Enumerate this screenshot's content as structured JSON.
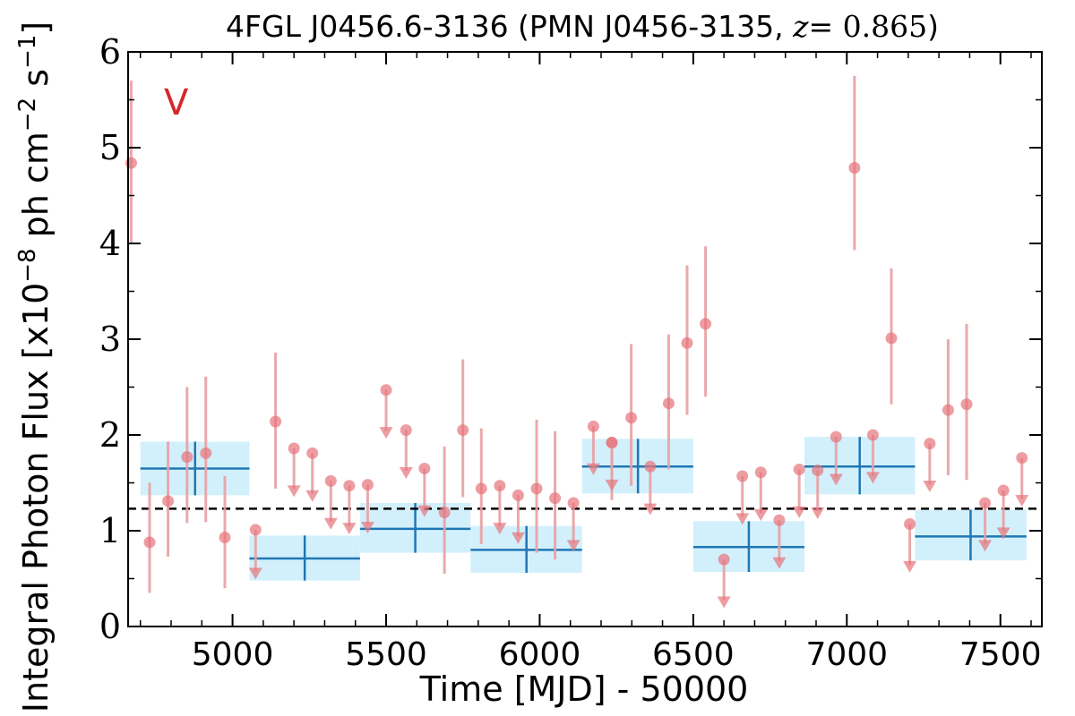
{
  "chart_data": {
    "type": "scatter",
    "title": {
      "prefix": "4FGL J0456.6-3136 (PMN J0456-3135, ",
      "z_label": "z",
      "z_value": "= 0.865",
      "suffix": ")"
    },
    "xlabel": "Time [MJD] - 50000",
    "ylabel": "Integral Photon Flux [x10",
    "ylabel_exp1": "−8",
    "ylabel_mid": " ph cm",
    "ylabel_exp2": "−2",
    "ylabel_mid2": " s",
    "ylabel_exp3": "−1",
    "ylabel_end": "]",
    "annotation": "V",
    "xlim": [
      4660,
      7635
    ],
    "ylim": [
      0,
      6
    ],
    "x_ticks": [
      5000,
      5500,
      6000,
      6500,
      7000,
      7500
    ],
    "x_tick_labels": [
      "5000",
      "5500",
      "6000",
      "6500",
      "7000",
      "7500"
    ],
    "y_ticks": [
      0,
      1,
      2,
      3,
      4,
      5,
      6
    ],
    "y_tick_labels": [
      "0",
      "1",
      "2",
      "3",
      "4",
      "5",
      "6"
    ],
    "mean_flux": 1.23,
    "colors": {
      "points": "#e5737a",
      "errorbars": "#e8a0a3",
      "bins_fill": "#cdeefc",
      "bins_line": "#1f77b4",
      "mean_line": "#000000",
      "annotation": "#d62728"
    },
    "series": [
      {
        "kind": "detections",
        "points": [
          {
            "x": 4670,
            "y": 4.84,
            "lo": 4.0,
            "hi": 5.7
          },
          {
            "x": 4730,
            "y": 0.88,
            "lo": 0.35,
            "hi": 1.5
          },
          {
            "x": 4790,
            "y": 1.31,
            "lo": 0.73,
            "hi": 1.93
          },
          {
            "x": 4852,
            "y": 1.77,
            "lo": 1.08,
            "hi": 2.5
          },
          {
            "x": 4913,
            "y": 1.81,
            "lo": 1.09,
            "hi": 2.61
          },
          {
            "x": 4975,
            "y": 0.93,
            "lo": 0.4,
            "hi": 1.57
          },
          {
            "x": 5140,
            "y": 2.14,
            "lo": 1.44,
            "hi": 2.86
          },
          {
            "x": 5690,
            "y": 1.19,
            "lo": 0.55,
            "hi": 1.88
          },
          {
            "x": 5750,
            "y": 2.05,
            "lo": 1.35,
            "hi": 2.79
          },
          {
            "x": 5810,
            "y": 1.44,
            "lo": 0.86,
            "hi": 2.07
          },
          {
            "x": 5990,
            "y": 1.44,
            "lo": 0.77,
            "hi": 2.16
          },
          {
            "x": 6050,
            "y": 1.34,
            "lo": 0.7,
            "hi": 2.04
          },
          {
            "x": 6235,
            "y": 1.92,
            "lo": 1.32,
            "hi": 1.92
          },
          {
            "x": 6298,
            "y": 2.18,
            "lo": 1.47,
            "hi": 2.95
          },
          {
            "x": 6420,
            "y": 2.33,
            "lo": 1.64,
            "hi": 3.05
          },
          {
            "x": 6480,
            "y": 2.96,
            "lo": 2.21,
            "hi": 3.77
          },
          {
            "x": 6540,
            "y": 3.16,
            "lo": 2.4,
            "hi": 3.97
          },
          {
            "x": 7025,
            "y": 4.79,
            "lo": 3.93,
            "hi": 5.75
          },
          {
            "x": 7145,
            "y": 3.01,
            "lo": 2.32,
            "hi": 3.74
          },
          {
            "x": 7330,
            "y": 2.26,
            "lo": 1.58,
            "hi": 3.0
          },
          {
            "x": 7390,
            "y": 2.32,
            "lo": 1.53,
            "hi": 3.16
          }
        ]
      },
      {
        "kind": "upper_limits",
        "points": [
          {
            "x": 5075,
            "y": 1.01,
            "to": 0.52
          },
          {
            "x": 5200,
            "y": 1.86,
            "to": 1.38
          },
          {
            "x": 5260,
            "y": 1.81,
            "to": 1.33
          },
          {
            "x": 5320,
            "y": 1.52,
            "to": 1.04
          },
          {
            "x": 5380,
            "y": 1.47,
            "to": 0.99
          },
          {
            "x": 5440,
            "y": 1.48,
            "to": 1.0
          },
          {
            "x": 5500,
            "y": 2.47,
            "to": 1.99
          },
          {
            "x": 5565,
            "y": 2.05,
            "to": 1.57
          },
          {
            "x": 5625,
            "y": 1.65,
            "to": 1.17
          },
          {
            "x": 5870,
            "y": 1.47,
            "to": 0.99
          },
          {
            "x": 5930,
            "y": 1.37,
            "to": 0.89
          },
          {
            "x": 6110,
            "y": 1.29,
            "to": 0.81
          },
          {
            "x": 6175,
            "y": 2.09,
            "to": 1.61
          },
          {
            "x": 6235,
            "y": 1.92,
            "to": 1.44
          },
          {
            "x": 6360,
            "y": 1.67,
            "to": 1.19
          },
          {
            "x": 6600,
            "y": 0.7,
            "to": 0.22
          },
          {
            "x": 6660,
            "y": 1.57,
            "to": 1.09
          },
          {
            "x": 6720,
            "y": 1.61,
            "to": 1.13
          },
          {
            "x": 6780,
            "y": 1.11,
            "to": 0.63
          },
          {
            "x": 6845,
            "y": 1.64,
            "to": 1.16
          },
          {
            "x": 6905,
            "y": 1.63,
            "to": 1.15
          },
          {
            "x": 6965,
            "y": 1.98,
            "to": 1.5
          },
          {
            "x": 7085,
            "y": 2.0,
            "to": 1.52
          },
          {
            "x": 7205,
            "y": 1.07,
            "to": 0.59
          },
          {
            "x": 7270,
            "y": 1.91,
            "to": 1.43
          },
          {
            "x": 7450,
            "y": 1.29,
            "to": 0.81
          },
          {
            "x": 7510,
            "y": 1.42,
            "to": 0.94
          },
          {
            "x": 7570,
            "y": 1.76,
            "to": 1.28
          }
        ]
      },
      {
        "kind": "bins",
        "bins": [
          {
            "x0": 4700,
            "x1": 5055,
            "y": 1.65,
            "ylo": 1.37,
            "yhi": 1.93,
            "xc": 4878
          },
          {
            "x0": 5055,
            "x1": 5415,
            "y": 0.71,
            "ylo": 0.48,
            "yhi": 0.95,
            "xc": 5235
          },
          {
            "x0": 5415,
            "x1": 5775,
            "y": 1.02,
            "ylo": 0.77,
            "yhi": 1.29,
            "xc": 5595
          },
          {
            "x0": 5775,
            "x1": 6138,
            "y": 0.8,
            "ylo": 0.56,
            "yhi": 1.05,
            "xc": 5957
          },
          {
            "x0": 6138,
            "x1": 6500,
            "y": 1.67,
            "ylo": 1.39,
            "yhi": 1.96,
            "xc": 6320
          },
          {
            "x0": 6500,
            "x1": 6862,
            "y": 0.83,
            "ylo": 0.57,
            "yhi": 1.1,
            "xc": 6681
          },
          {
            "x0": 6862,
            "x1": 7222,
            "y": 1.67,
            "ylo": 1.38,
            "yhi": 1.98,
            "xc": 7042
          },
          {
            "x0": 7222,
            "x1": 7585,
            "y": 0.94,
            "ylo": 0.69,
            "yhi": 1.22,
            "xc": 7403
          }
        ]
      }
    ]
  }
}
